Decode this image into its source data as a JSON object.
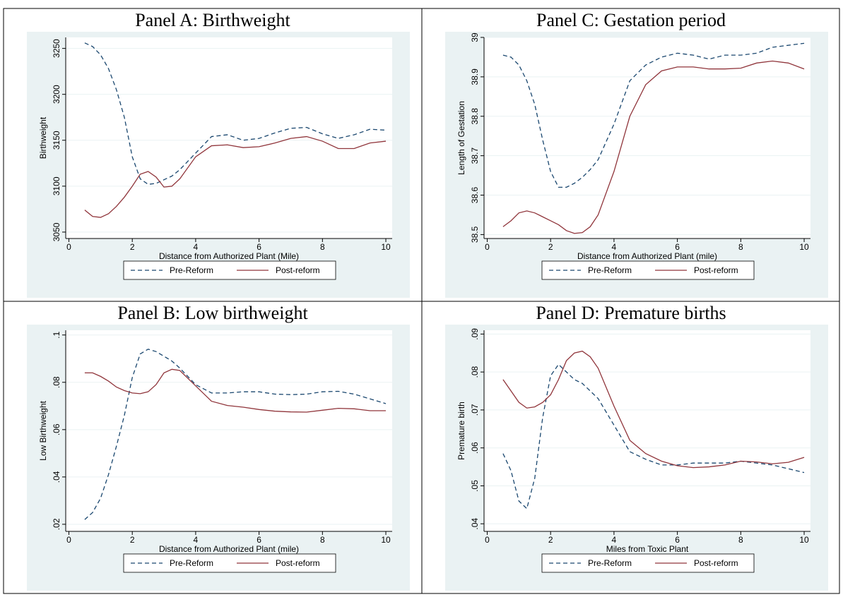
{
  "chart_data": [
    {
      "type": "line",
      "title": "Panel A: Birthweight",
      "xlabel": "Distance from Authorized Plant (Mile)",
      "ylabel": "Birthweight",
      "x": [
        0.5,
        0.75,
        1,
        1.25,
        1.5,
        1.75,
        2,
        2.25,
        2.5,
        2.75,
        3,
        3.25,
        3.5,
        4,
        4.5,
        5,
        5.5,
        6,
        6.5,
        7,
        7.5,
        8,
        8.5,
        9,
        9.5,
        10
      ],
      "series": [
        {
          "name": "Pre-Reform",
          "color": "#1a476f",
          "linestyle": "dashed",
          "values": [
            3256,
            3252,
            3243,
            3228,
            3205,
            3175,
            3132,
            3108,
            3102,
            3103,
            3107,
            3111,
            3118,
            3136,
            3154,
            3156,
            3150,
            3152,
            3158,
            3163,
            3164,
            3157,
            3152,
            3156,
            3162,
            3161
          ]
        },
        {
          "name": "Post-reform",
          "color": "#90353b",
          "linestyle": "solid",
          "values": [
            3074,
            3067,
            3066,
            3070,
            3078,
            3088,
            3100,
            3113,
            3116,
            3110,
            3099,
            3100,
            3108,
            3132,
            3144,
            3145,
            3142,
            3143,
            3147,
            3152,
            3154,
            3149,
            3141,
            3141,
            3147,
            3149
          ]
        }
      ],
      "xlim": [
        -0.1,
        10.2
      ],
      "ylim": [
        3043,
        3262
      ],
      "xticks": [
        0,
        2,
        4,
        6,
        8,
        10
      ],
      "yticks": [
        3050,
        3100,
        3150,
        3200,
        3250
      ],
      "grid": true
    },
    {
      "type": "line",
      "title": "Panel C: Gestation period",
      "xlabel": "Distance from Authorized Plant (mile)",
      "ylabel": "Length of Gestation",
      "x": [
        0.5,
        0.75,
        1,
        1.25,
        1.5,
        1.75,
        2,
        2.25,
        2.5,
        2.75,
        3,
        3.25,
        3.5,
        4,
        4.5,
        5,
        5.5,
        6,
        6.5,
        7,
        7.5,
        8,
        8.5,
        9,
        9.5,
        10
      ],
      "series": [
        {
          "name": "Pre-Reform",
          "color": "#1a476f",
          "linestyle": "dashed",
          "values": [
            38.955,
            38.95,
            38.93,
            38.89,
            38.83,
            38.74,
            38.66,
            38.62,
            38.62,
            38.63,
            38.645,
            38.665,
            38.69,
            38.78,
            38.89,
            38.93,
            38.95,
            38.96,
            38.955,
            38.945,
            38.955,
            38.955,
            38.96,
            38.975,
            38.98,
            38.985
          ]
        },
        {
          "name": "Post-reform",
          "color": "#90353b",
          "linestyle": "solid",
          "values": [
            38.52,
            38.535,
            38.555,
            38.56,
            38.555,
            38.545,
            38.535,
            38.525,
            38.51,
            38.503,
            38.505,
            38.52,
            38.55,
            38.66,
            38.8,
            38.88,
            38.915,
            38.925,
            38.925,
            38.92,
            38.92,
            38.922,
            38.935,
            38.94,
            38.935,
            38.92
          ]
        }
      ],
      "xlim": [
        -0.1,
        10.2
      ],
      "ylim": [
        38.49,
        39.0
      ],
      "xticks": [
        0,
        2,
        4,
        6,
        8,
        10
      ],
      "yticks": [
        38.5,
        38.6,
        38.7,
        38.8,
        38.9,
        39
      ],
      "grid": true
    },
    {
      "type": "line",
      "title": "Panel B: Low birthweight",
      "xlabel": "Distance from Authorized Plant (mile)",
      "ylabel": "Low Birthweight",
      "x": [
        0.5,
        0.75,
        1,
        1.25,
        1.5,
        1.75,
        2,
        2.25,
        2.5,
        2.75,
        3,
        3.25,
        3.5,
        4,
        4.5,
        5,
        5.5,
        6,
        6.5,
        7,
        7.5,
        8,
        8.5,
        9,
        9.5,
        10
      ],
      "series": [
        {
          "name": "Pre-Reform",
          "color": "#1a476f",
          "linestyle": "dashed",
          "values": [
            0.022,
            0.025,
            0.031,
            0.041,
            0.053,
            0.066,
            0.082,
            0.092,
            0.094,
            0.093,
            0.091,
            0.089,
            0.086,
            0.079,
            0.0755,
            0.0755,
            0.076,
            0.076,
            0.075,
            0.0748,
            0.075,
            0.076,
            0.0762,
            0.075,
            0.073,
            0.071
          ]
        },
        {
          "name": "Post-reform",
          "color": "#90353b",
          "linestyle": "solid",
          "values": [
            0.084,
            0.084,
            0.0825,
            0.0805,
            0.078,
            0.0765,
            0.0755,
            0.0752,
            0.076,
            0.079,
            0.084,
            0.0855,
            0.085,
            0.0785,
            0.072,
            0.0702,
            0.0695,
            0.0685,
            0.0678,
            0.0675,
            0.0674,
            0.0682,
            0.069,
            0.0688,
            0.068,
            0.068
          ]
        }
      ],
      "xlim": [
        -0.1,
        10.2
      ],
      "ylim": [
        0.017,
        0.102
      ],
      "xticks": [
        0,
        2,
        4,
        6,
        8,
        10
      ],
      "yticks": [
        {
          "value": 0.02,
          "label": ".02"
        },
        {
          "value": 0.04,
          "label": ".04"
        },
        {
          "value": 0.06,
          "label": ".06"
        },
        {
          "value": 0.08,
          "label": ".08"
        },
        {
          "value": 0.1,
          "label": ".1"
        }
      ],
      "grid": true
    },
    {
      "type": "line",
      "title": "Panel D: Premature births",
      "xlabel": "Miles from Toxic Plant",
      "ylabel": "Premature birth",
      "x": [
        0.5,
        0.75,
        1,
        1.25,
        1.5,
        1.75,
        2,
        2.25,
        2.5,
        2.75,
        3,
        3.25,
        3.5,
        4,
        4.5,
        5,
        5.5,
        6,
        6.5,
        7,
        7.5,
        8,
        8.5,
        9,
        9.5,
        10
      ],
      "series": [
        {
          "name": "Pre-Reform",
          "color": "#1a476f",
          "linestyle": "dashed",
          "values": [
            0.0585,
            0.054,
            0.046,
            0.044,
            0.052,
            0.068,
            0.079,
            0.082,
            0.08,
            0.078,
            0.077,
            0.075,
            0.073,
            0.066,
            0.059,
            0.057,
            0.0555,
            0.0555,
            0.056,
            0.056,
            0.056,
            0.0565,
            0.056,
            0.0555,
            0.0545,
            0.0535
          ]
        },
        {
          "name": "Post-reform",
          "color": "#90353b",
          "linestyle": "solid",
          "values": [
            0.078,
            0.075,
            0.072,
            0.0705,
            0.0708,
            0.072,
            0.074,
            0.078,
            0.083,
            0.085,
            0.0855,
            0.084,
            0.081,
            0.071,
            0.062,
            0.0585,
            0.0565,
            0.0553,
            0.0548,
            0.055,
            0.0555,
            0.0565,
            0.0563,
            0.0558,
            0.0562,
            0.0575
          ]
        }
      ],
      "xlim": [
        -0.1,
        10.2
      ],
      "ylim": [
        0.038,
        0.091
      ],
      "xticks": [
        0,
        2,
        4,
        6,
        8,
        10
      ],
      "yticks": [
        {
          "value": 0.04,
          "label": ".04"
        },
        {
          "value": 0.05,
          "label": ".05"
        },
        {
          "value": 0.06,
          "label": ".06"
        },
        {
          "value": 0.07,
          "label": ".07"
        },
        {
          "value": 0.08,
          "label": ".08"
        },
        {
          "value": 0.09,
          "label": ".09"
        }
      ],
      "grid": true
    }
  ]
}
